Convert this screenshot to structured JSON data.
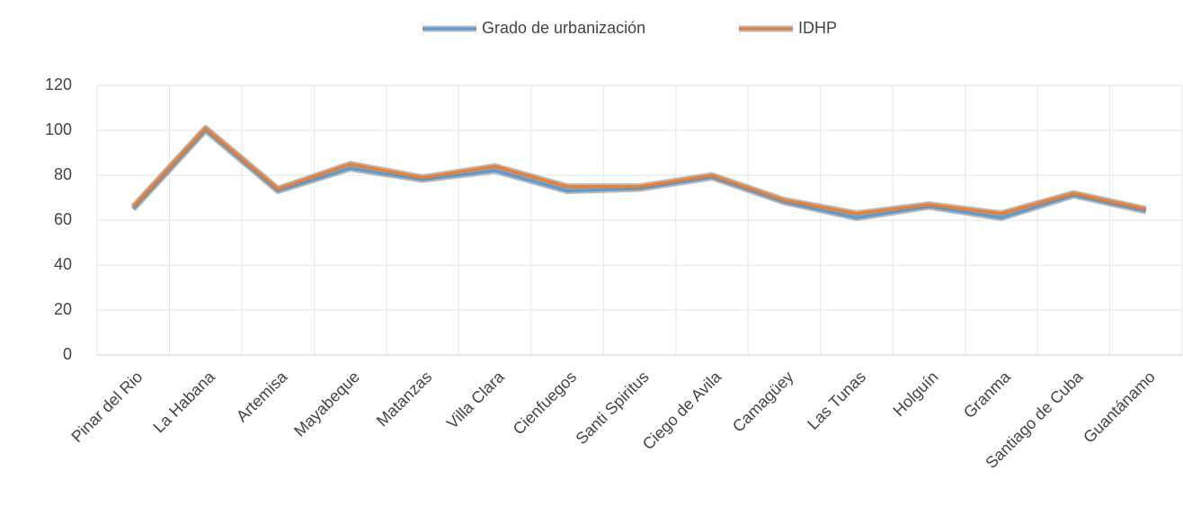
{
  "chart_data": {
    "type": "line",
    "categories": [
      "Pinar del Rio",
      "La Habana",
      "Artemisa",
      "Mayabeque",
      "Matanzas",
      "Villa Clara",
      "Cienfuegos",
      "Santi Spiritus",
      "Ciego de Avila",
      "Camagüey",
      "Las Tunas",
      "Holguín",
      "Granma",
      "Santiago de Cuba",
      "Guantánamo"
    ],
    "series": [
      {
        "name": "Grado de urbanización",
        "color": "#5b9bd5",
        "values": [
          65,
          100,
          73,
          83,
          78,
          82,
          73,
          74,
          79,
          68,
          61,
          66,
          61,
          71,
          64
        ]
      },
      {
        "name": "IDHP",
        "color": "#ed7d31",
        "values": [
          66,
          101,
          74,
          85,
          79,
          84,
          75,
          75,
          80,
          69,
          63,
          67,
          63,
          72,
          65
        ]
      }
    ],
    "ylim": [
      0,
      120
    ],
    "yticks": [
      0,
      20,
      40,
      60,
      80,
      100,
      120
    ],
    "grid": true,
    "legend": "top"
  }
}
